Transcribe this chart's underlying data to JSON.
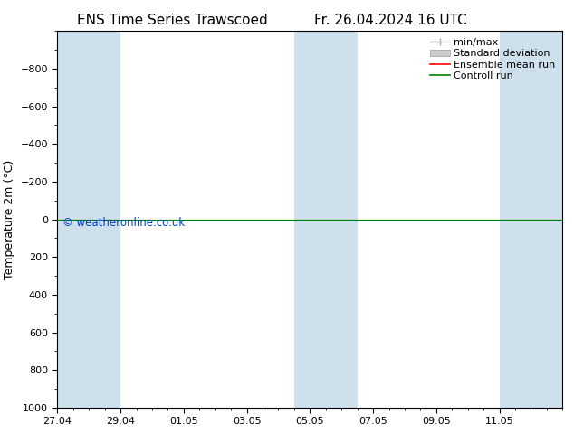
{
  "title_left": "ENS Time Series Trawscoed",
  "title_right": "Fr. 26.04.2024 16 UTC",
  "ylabel": "Temperature 2m (°C)",
  "ylim": [
    -1000,
    1000
  ],
  "yticks": [
    -800,
    -600,
    -400,
    -200,
    0,
    200,
    400,
    600,
    800,
    1000
  ],
  "xtick_labels": [
    "27.04",
    "29.04",
    "01.05",
    "03.05",
    "05.05",
    "07.05",
    "09.05",
    "11.05"
  ],
  "xtick_positions": [
    0,
    2,
    4,
    6,
    8,
    10,
    12,
    14
  ],
  "xlim": [
    0,
    16
  ],
  "shaded_bands": [
    {
      "x_start": 0,
      "x_end": 1,
      "color": "#cfe0ed"
    },
    {
      "x_start": 1,
      "x_end": 2,
      "color": "#cfe0ed"
    },
    {
      "x_start": 7.5,
      "x_end": 8.5,
      "color": "#cfe0ed"
    },
    {
      "x_start": 8.5,
      "x_end": 9.5,
      "color": "#cfe0ed"
    },
    {
      "x_start": 14,
      "x_end": 16,
      "color": "#cfe0ed"
    }
  ],
  "hline_y": 0,
  "hline_color_green": "#008000",
  "hline_color_red": "#ff0000",
  "watermark": "© weatheronline.co.uk",
  "watermark_color": "#0044cc",
  "bg_color": "#ffffff",
  "plot_bg_color": "#ffffff",
  "spine_color": "#000000",
  "title_fontsize": 11,
  "label_fontsize": 9,
  "tick_fontsize": 8,
  "legend_fontsize": 8
}
